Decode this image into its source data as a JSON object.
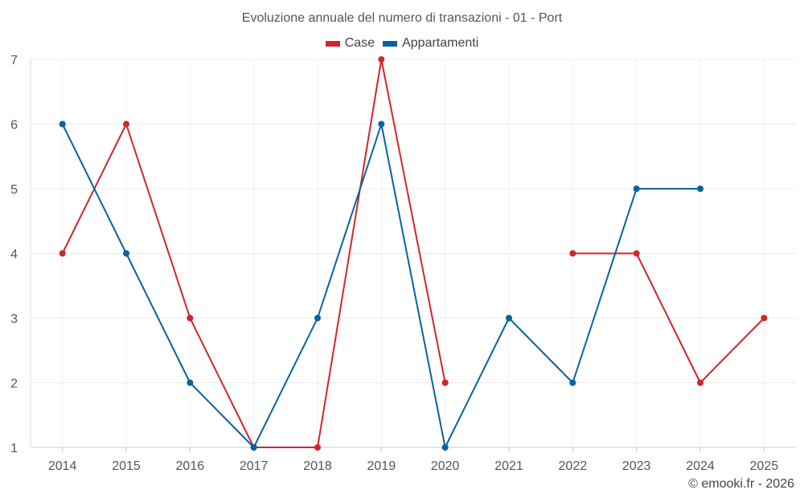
{
  "chart_data": {
    "type": "line",
    "title": "Evoluzione annuale del numero di transazioni - 01 - Port",
    "xlabel": "",
    "ylabel": "",
    "categories": [
      "2014",
      "2015",
      "2016",
      "2017",
      "2018",
      "2019",
      "2020",
      "2021",
      "2022",
      "2023",
      "2024",
      "2025"
    ],
    "ylim": [
      1,
      7
    ],
    "yticks": [
      1,
      2,
      3,
      4,
      5,
      6,
      7
    ],
    "grid": true,
    "legend_position": "top-center",
    "series": [
      {
        "name": "Case",
        "color": "#d0262d",
        "values": [
          4,
          6,
          3,
          1,
          1,
          7,
          2,
          null,
          4,
          4,
          2,
          3
        ]
      },
      {
        "name": "Appartamenti",
        "color": "#0a62a0",
        "values": [
          6,
          4,
          2,
          1,
          3,
          6,
          1,
          3,
          2,
          5,
          5,
          null
        ]
      }
    ]
  },
  "credit": "© emooki.fr - 2026"
}
